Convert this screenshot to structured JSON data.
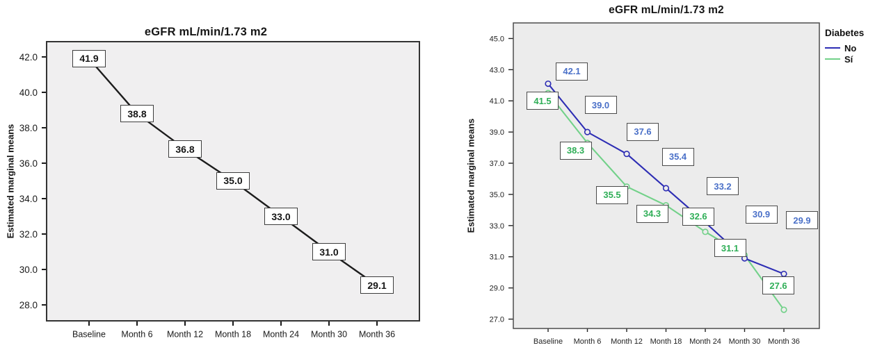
{
  "page": {
    "background": "#ffffff"
  },
  "chart_data": [
    {
      "type": "line",
      "title": "eGFR mL/min/1.73 m2",
      "ylabel": "Estimated marginal means",
      "xlabel": "",
      "categories": [
        "Baseline",
        "Month 6",
        "Month 12",
        "Month 18",
        "Month 24",
        "Month 30",
        "Month 36"
      ],
      "series": [
        {
          "name": "",
          "color": "#1c1c1c",
          "label_color": "#161616",
          "values": [
            41.9,
            38.8,
            36.8,
            35.0,
            33.0,
            31.0,
            29.1
          ],
          "markers": false,
          "labels_centered": true
        }
      ],
      "yticks": [
        42.0,
        40.0,
        38.0,
        36.0,
        34.0,
        32.0,
        30.0,
        28.0
      ],
      "ylim": [
        27.1,
        42.86
      ],
      "grid": false,
      "legend": null,
      "plot_background": "#f0eff0"
    },
    {
      "type": "line",
      "title": "eGFR mL/min/1.73 m2",
      "ylabel": "Estimated marginal means",
      "xlabel": "",
      "categories": [
        "Baseline",
        "Month 6",
        "Month 12",
        "Month 18",
        "Month 24",
        "Month 30",
        "Month 36"
      ],
      "series": [
        {
          "name": "Sí",
          "color": "#72d189",
          "label_color": "#2fae57",
          "values": [
            41.5,
            38.3,
            35.5,
            34.3,
            32.6,
            31.1,
            27.6
          ],
          "markers": true,
          "label_offsets": [
            [
              -8,
              11
            ],
            [
              -17,
              11
            ],
            [
              -21,
              12
            ],
            [
              -20,
              12
            ],
            [
              -10,
              -22
            ],
            [
              -21,
              -10
            ],
            [
              -8,
              -35
            ]
          ]
        },
        {
          "name": "No",
          "color": "#2d2db4",
          "label_color": "#4a70c8",
          "values": [
            42.1,
            39.0,
            37.6,
            35.4,
            33.2,
            30.9,
            29.9
          ],
          "markers": true,
          "label_offsets": [
            [
              34,
              -18
            ],
            [
              19,
              -39
            ],
            [
              23,
              -32
            ],
            [
              17,
              -45
            ],
            [
              25,
              -52
            ],
            [
              24,
              -63
            ],
            [
              26,
              -77
            ]
          ]
        }
      ],
      "yticks": [
        45.0,
        43.0,
        41.0,
        39.0,
        37.0,
        35.0,
        33.0,
        31.0,
        29.0,
        27.0
      ],
      "ylim": [
        26.4,
        46.0
      ],
      "grid": false,
      "legend": {
        "title": "Diabetes",
        "position": "top-right",
        "items": [
          "No",
          "Sí"
        ]
      },
      "plot_background": "#ececec"
    }
  ]
}
